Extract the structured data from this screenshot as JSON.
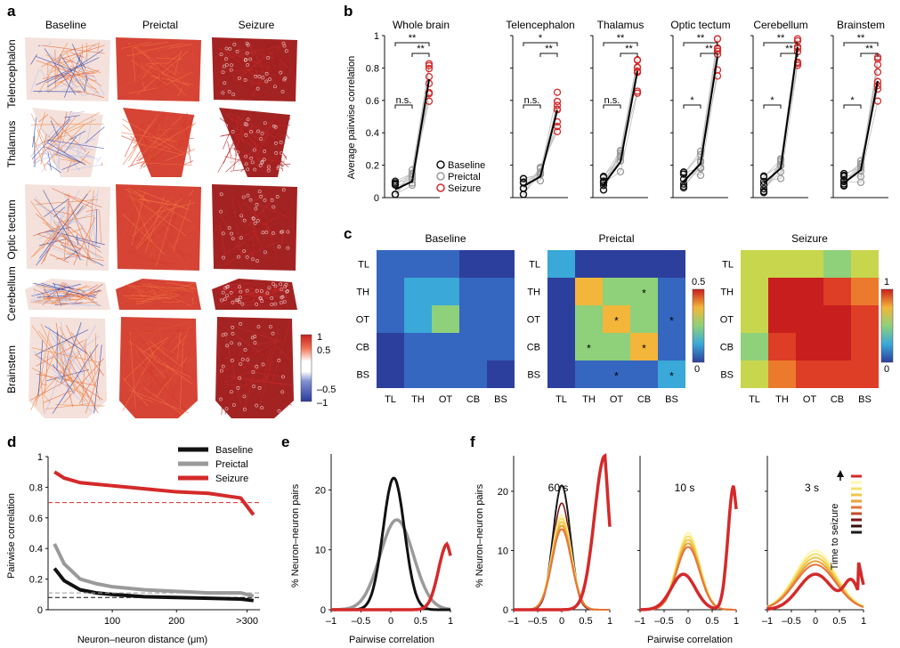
{
  "panel_letters": {
    "a": "a",
    "b": "b",
    "c": "c",
    "d": "d",
    "e": "e",
    "f": "f"
  },
  "panel_a": {
    "columns": [
      "Baseline",
      "Preictal",
      "Seizure"
    ],
    "rows": [
      "Telencephalon",
      "Thalamus",
      "Optic tectum",
      "Cerebellum",
      "Brainstem"
    ],
    "colorbar_ticks": [
      "1",
      "0.5",
      "–0.5",
      "–1"
    ]
  },
  "panel_b": {
    "ylabel": "Average pairwise correlation",
    "yticks": [
      "0",
      "0.2",
      "0.4",
      "0.6",
      "0.8",
      "1"
    ],
    "legend": [
      "Baseline",
      "Preictal",
      "Seizure"
    ]
  },
  "panel_c": {
    "titles": [
      "Baseline",
      "Preictal",
      "Seizure"
    ],
    "labels": [
      "TL",
      "TH",
      "OT",
      "CB",
      "BS"
    ],
    "cbar_preictal": [
      "0.5",
      "0"
    ],
    "cbar_seizure": [
      "1",
      "0"
    ]
  },
  "panel_d": {
    "ylabel": "Pairwise correlation",
    "xlabel": "Neuron–neuron distance (μm)",
    "yticks": [
      "0",
      "0.2",
      "0.4",
      "0.6",
      "0.8",
      "1"
    ],
    "xticks": [
      "100",
      "200",
      ">300"
    ],
    "legend": [
      "Baseline",
      "Preictal",
      "Seizure"
    ]
  },
  "panel_e": {
    "ylabel": "% Neuron–neuron pairs",
    "xlabel": "Pairwise correlation",
    "yticks": [
      "0",
      "10",
      "20"
    ],
    "xticks": [
      "–1",
      "–0.5",
      "0",
      "0.5",
      "1"
    ]
  },
  "panel_f": {
    "ylabel": "% Neuron–neuron pairs",
    "xlabel": "Pairwise correlation",
    "yticks": [
      "0",
      "10",
      "20"
    ],
    "xticks": [
      "–1",
      "–0.5",
      "0",
      "0.5",
      "1"
    ],
    "time_labels": [
      "60 s",
      "10 s",
      "3 s"
    ],
    "legend_title": "Time to seizure"
  },
  "colors": {
    "baseline": "#111111",
    "preictal": "#9a9a9a",
    "seizure": "#d42a2a",
    "heat_low": "#2b3b9c",
    "heat_high": "#c81e1e"
  },
  "chart_data": [
    {
      "type": "scatter",
      "panel": "b",
      "ylabel": "Average pairwise correlation",
      "ylim": [
        0,
        1
      ],
      "categories": [
        "Whole brain",
        "Telencephalon",
        "Thalamus",
        "Optic tectum",
        "Cerebellum",
        "Brainstem"
      ],
      "series": [
        {
          "name": "Baseline",
          "values": [
            0.05,
            0.07,
            0.08,
            0.1,
            0.09,
            0.09
          ]
        },
        {
          "name": "Preictal",
          "values": [
            0.1,
            0.13,
            0.22,
            0.21,
            0.18,
            0.17
          ]
        },
        {
          "name": "Seizure",
          "values": [
            0.73,
            0.54,
            0.78,
            0.87,
            0.93,
            0.72
          ]
        }
      ],
      "significance_labels": [
        [
          "**",
          "**",
          "n.s."
        ],
        [
          "*",
          "**",
          "n.s."
        ],
        [
          "**",
          "**",
          "n.s."
        ],
        [
          "**",
          "**",
          "*"
        ],
        [
          "**",
          "**",
          "*"
        ],
        [
          "**",
          "**",
          "*"
        ]
      ]
    },
    {
      "type": "heatmap",
      "panel": "c",
      "x": [
        "TL",
        "TH",
        "OT",
        "CB",
        "BS"
      ],
      "y": [
        "TL",
        "TH",
        "OT",
        "CB",
        "BS"
      ],
      "matrices": [
        {
          "name": "Baseline",
          "clim": [
            0,
            0.5
          ],
          "values": [
            [
              0.05,
              0.05,
              0.05,
              0.04,
              0.02
            ],
            [
              0.05,
              0.12,
              0.1,
              0.08,
              0.06
            ],
            [
              0.05,
              0.1,
              0.22,
              0.08,
              0.06
            ],
            [
              0.04,
              0.08,
              0.08,
              0.06,
              0.05
            ],
            [
              0.02,
              0.06,
              0.06,
              0.05,
              0.04
            ]
          ]
        },
        {
          "name": "Preictal",
          "clim": [
            0,
            0.5
          ],
          "values": [
            [
              0.1,
              0.04,
              0.04,
              0.04,
              0.04
            ],
            [
              0.04,
              0.32,
              0.24,
              0.22,
              0.05
            ],
            [
              0.04,
              0.24,
              0.31,
              0.2,
              0.06
            ],
            [
              0.04,
              0.22,
              0.2,
              0.33,
              0.05
            ],
            [
              0.04,
              0.05,
              0.06,
              0.05,
              0.12
            ]
          ]
        },
        {
          "name": "Seizure",
          "clim": [
            0,
            1
          ],
          "values": [
            [
              0.55,
              0.5,
              0.5,
              0.48,
              0.55
            ],
            [
              0.5,
              0.92,
              0.9,
              0.88,
              0.78
            ],
            [
              0.5,
              0.9,
              0.94,
              0.9,
              0.8
            ],
            [
              0.48,
              0.88,
              0.9,
              0.96,
              0.82
            ],
            [
              0.55,
              0.78,
              0.8,
              0.82,
              0.86
            ]
          ]
        }
      ],
      "stars": {
        "Preictal": [
          [
            1,
            3
          ],
          [
            2,
            2
          ],
          [
            2,
            4
          ],
          [
            3,
            1
          ],
          [
            3,
            3
          ],
          [
            4,
            2
          ],
          [
            4,
            4
          ]
        ]
      }
    },
    {
      "type": "line",
      "panel": "d",
      "xlabel": "Neuron–neuron distance (μm)",
      "ylabel": "Pairwise correlation",
      "ylim": [
        0,
        1
      ],
      "x": [
        10,
        25,
        50,
        75,
        100,
        150,
        200,
        250,
        300,
        320
      ],
      "series": [
        {
          "name": "Baseline",
          "values": [
            0.27,
            0.19,
            0.13,
            0.11,
            0.1,
            0.085,
            0.08,
            0.075,
            0.07,
            0.06
          ],
          "shuffle_level": 0.08
        },
        {
          "name": "Preictal",
          "values": [
            0.43,
            0.3,
            0.2,
            0.17,
            0.15,
            0.13,
            0.12,
            0.11,
            0.11,
            0.09
          ],
          "shuffle_level": 0.11
        },
        {
          "name": "Seizure",
          "values": [
            0.9,
            0.86,
            0.83,
            0.82,
            0.81,
            0.79,
            0.77,
            0.76,
            0.73,
            0.62
          ],
          "shuffle_level": 0.7
        }
      ]
    },
    {
      "type": "line",
      "panel": "e",
      "xlabel": "Pairwise correlation",
      "ylabel": "% Neuron–neuron pairs",
      "xlim": [
        -1,
        1
      ],
      "ylim": [
        0,
        26
      ],
      "series": [
        {
          "name": "Baseline",
          "peak_x": 0.05,
          "peak_y": 22
        },
        {
          "name": "Preictal",
          "peak_x": 0.1,
          "peak_y": 15
        },
        {
          "name": "Seizure",
          "peak_x": 0.95,
          "peak_y": 11
        }
      ]
    },
    {
      "type": "line",
      "panel": "f",
      "xlabel": "Pairwise correlation",
      "ylabel": "% Neuron–neuron pairs",
      "xlim": [
        -1,
        1
      ],
      "ylim": [
        0,
        26
      ],
      "subplots": [
        {
          "label": "60 s",
          "preictal_peak": 16,
          "seizure_peak": 26
        },
        {
          "label": "10 s",
          "preictal_peak": 13,
          "seizure_peak": 21
        },
        {
          "label": "3 s",
          "preictal_peak": 10,
          "seizure_peak": 10
        }
      ]
    }
  ]
}
